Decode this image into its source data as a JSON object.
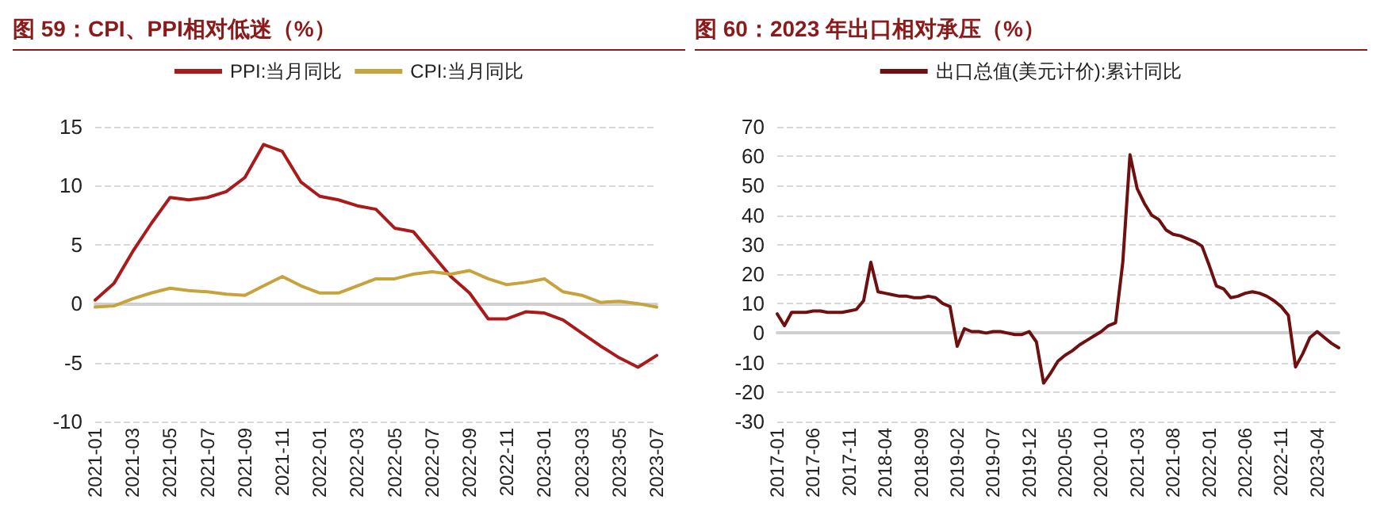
{
  "chart_data": [
    {
      "type": "line",
      "title": "图 59：CPI、PPI相对低迷（%）",
      "categories": [
        "2021-01",
        null,
        "2021-03",
        null,
        "2021-05",
        null,
        "2021-07",
        null,
        "2021-09",
        null,
        "2021-11",
        null,
        "2022-01",
        null,
        "2022-03",
        null,
        "2022-05",
        null,
        "2022-07",
        null,
        "2022-09",
        null,
        "2022-11",
        null,
        "2023-01",
        null,
        "2023-03",
        null,
        "2023-05",
        null,
        "2023-07"
      ],
      "series": [
        {
          "name": "PPI:当月同比",
          "color": "#a91b1b",
          "values": [
            0.3,
            1.7,
            4.4,
            6.8,
            9.0,
            8.8,
            9.0,
            9.5,
            10.7,
            13.5,
            12.9,
            10.3,
            9.1,
            8.8,
            8.3,
            8.0,
            6.4,
            6.1,
            4.2,
            2.3,
            0.9,
            -1.3,
            -1.3,
            -0.7,
            -0.8,
            -1.4,
            -2.5,
            -3.6,
            -4.6,
            -5.4,
            -4.4
          ]
        },
        {
          "name": "CPI:当月同比",
          "color": "#c8a23c",
          "values": [
            -0.3,
            -0.2,
            0.4,
            0.9,
            1.3,
            1.1,
            1.0,
            0.8,
            0.7,
            1.5,
            2.3,
            1.5,
            0.9,
            0.9,
            1.5,
            2.1,
            2.1,
            2.5,
            2.7,
            2.5,
            2.8,
            2.1,
            1.6,
            1.8,
            2.1,
            1.0,
            0.7,
            0.1,
            0.2,
            0.0,
            -0.3
          ]
        }
      ],
      "ylim": [
        -10,
        15
      ],
      "yticks": [
        -10,
        -5,
        0,
        5,
        10,
        15
      ],
      "grid": "y",
      "legend": "top",
      "marker": "none",
      "line_style": "solid"
    },
    {
      "type": "line",
      "title": "图 60：2023 年出口相对承压（%）",
      "categories": [
        "2017-01",
        null,
        null,
        null,
        null,
        "2017-06",
        null,
        null,
        null,
        null,
        "2017-11",
        null,
        null,
        null,
        null,
        "2018-04",
        null,
        null,
        null,
        null,
        "2018-09",
        null,
        null,
        null,
        null,
        "2019-02",
        null,
        null,
        null,
        null,
        "2019-07",
        null,
        null,
        null,
        null,
        "2019-12",
        null,
        null,
        null,
        null,
        "2020-05",
        null,
        null,
        null,
        null,
        "2020-10",
        null,
        null,
        null,
        null,
        "2021-03",
        null,
        null,
        null,
        null,
        "2021-08",
        null,
        null,
        null,
        null,
        "2022-01",
        null,
        null,
        null,
        null,
        "2022-06",
        null,
        null,
        null,
        null,
        "2022-11",
        null,
        null,
        null,
        null,
        "2023-04",
        null,
        null,
        null
      ],
      "series": [
        {
          "name": "出口总值(美元计价):累计同比",
          "color": "#6e1010",
          "values": [
            6.5,
            2.5,
            7.0,
            7.0,
            7.0,
            7.5,
            7.5,
            7.0,
            7.0,
            7.0,
            7.5,
            8.0,
            11.0,
            24.0,
            14.0,
            13.5,
            13.0,
            12.5,
            12.5,
            12.0,
            12.0,
            12.5,
            12.0,
            10.0,
            9.0,
            -4.5,
            1.5,
            0.5,
            0.5,
            0.0,
            0.5,
            0.5,
            0.0,
            -0.5,
            -0.5,
            0.5,
            -3.0,
            -17.0,
            -13.5,
            -9.5,
            -7.5,
            -6.0,
            -4.0,
            -2.5,
            -1.0,
            0.5,
            2.5,
            3.5,
            24.0,
            60.5,
            49.0,
            44.0,
            40.0,
            38.5,
            35.0,
            33.5,
            33.0,
            32.0,
            31.0,
            29.5,
            23.0,
            16.0,
            15.0,
            12.0,
            12.5,
            13.5,
            14.0,
            13.5,
            12.5,
            11.0,
            9.0,
            6.0,
            -11.5,
            -7.0,
            -1.5,
            0.5,
            -1.5,
            -3.5,
            -5.0
          ]
        }
      ],
      "ylim": [
        -30,
        70
      ],
      "yticks": [
        -30,
        -20,
        -10,
        0,
        10,
        20,
        30,
        40,
        50,
        60,
        70
      ],
      "grid": "y",
      "legend": "top",
      "marker": "none",
      "line_style": "solid"
    }
  ]
}
